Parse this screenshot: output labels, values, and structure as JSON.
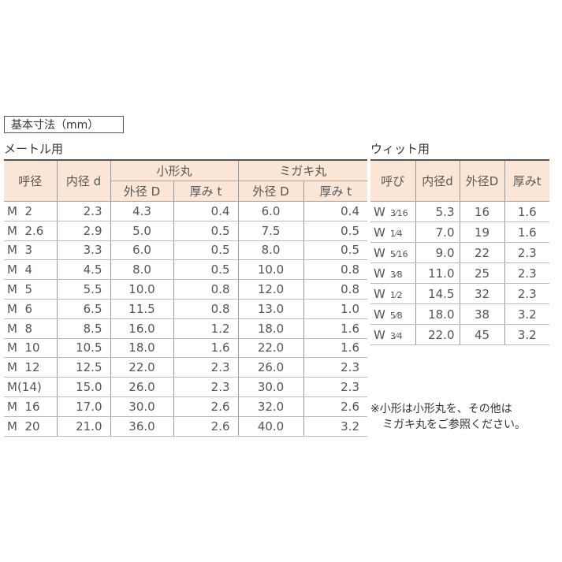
{
  "title": "基本寸法（mm）",
  "metric": {
    "heading": "メートル用",
    "headers": {
      "nominal": "呼径",
      "inner": "内径 d",
      "small": "小形丸",
      "migaki": "ミガキ丸",
      "outer": "外径 D",
      "thick": "厚み t"
    },
    "rows": [
      [
        "M  2",
        "2.3",
        "4.3",
        "0.4",
        "6.0",
        "0.4"
      ],
      [
        "M  2.6",
        "2.9",
        "5.0",
        "0.5",
        "7.5",
        "0.5"
      ],
      [
        "M  3",
        "3.3",
        "6.0",
        "0.5",
        "8.0",
        "0.5"
      ],
      [
        "M  4",
        "4.5",
        "8.0",
        "0.5",
        "10.0",
        "0.8"
      ],
      [
        "M  5",
        "5.5",
        "10.0",
        "0.8",
        "12.0",
        "0.8"
      ],
      [
        "M  6",
        "6.5",
        "11.5",
        "0.8",
        "13.0",
        "1.0"
      ],
      [
        "M  8",
        "8.5",
        "16.0",
        "1.2",
        "18.0",
        "1.6"
      ],
      [
        "M  10",
        "10.5",
        "18.0",
        "1.6",
        "22.0",
        "1.6"
      ],
      [
        "M  12",
        "12.5",
        "22.0",
        "2.3",
        "26.0",
        "2.3"
      ],
      [
        "M(14)",
        "15.0",
        "26.0",
        "2.3",
        "30.0",
        "2.3"
      ],
      [
        "M  16",
        "17.0",
        "30.0",
        "2.6",
        "32.0",
        "2.6"
      ],
      [
        "M  20",
        "21.0",
        "36.0",
        "2.6",
        "40.0",
        "3.2"
      ]
    ]
  },
  "whit": {
    "heading": "ウィット用",
    "headers": [
      "呼び",
      "内径d",
      "外径D",
      "厚みt"
    ],
    "rows": [
      [
        "W",
        "3⁄16",
        "5.3",
        "16",
        "1.6"
      ],
      [
        "W",
        "1⁄4",
        "7.0",
        "19",
        "1.6"
      ],
      [
        "W",
        "5⁄16",
        "9.0",
        "22",
        "2.3"
      ],
      [
        "W",
        "3⁄8",
        "11.0",
        "25",
        "2.3"
      ],
      [
        "W",
        "1⁄2",
        "14.5",
        "32",
        "2.3"
      ],
      [
        "W",
        "5⁄8",
        "18.0",
        "38",
        "3.2"
      ],
      [
        "W",
        "3⁄4",
        "22.0",
        "45",
        "3.2"
      ]
    ]
  },
  "note": [
    "※小形は小形丸を、その他は",
    "ミガキ丸をご参照ください。"
  ],
  "colors": {
    "header_bg": "#fbe6d6"
  }
}
